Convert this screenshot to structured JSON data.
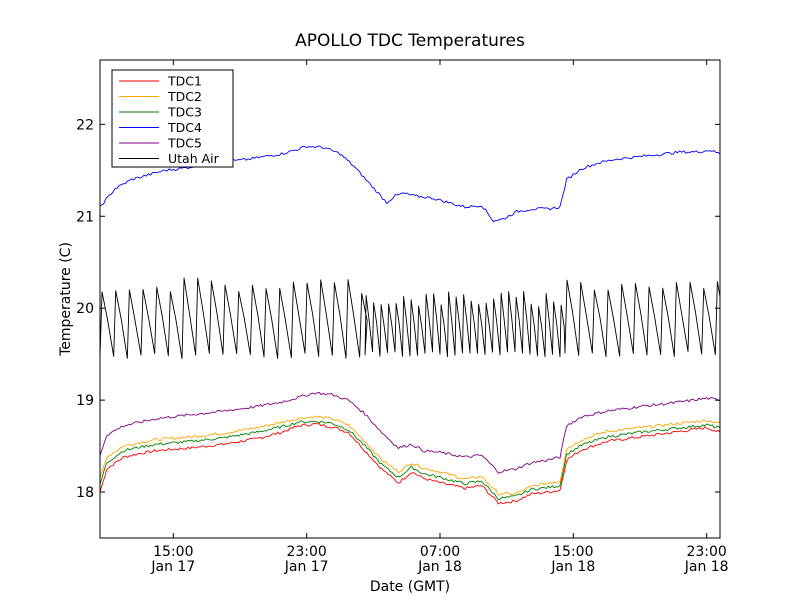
{
  "chart_data": {
    "type": "line",
    "title": "APOLLO TDC Temperatures",
    "xlabel": "Date (GMT)",
    "ylabel": "Temperature (C)",
    "x_unit": "hours since Jan 17 00:00 GMT",
    "xlim": [
      10.6,
      47.8
    ],
    "ylim": [
      17.5,
      22.7
    ],
    "x_ticks": [
      {
        "value": 15,
        "time": "15:00",
        "date": "Jan 17"
      },
      {
        "value": 23,
        "time": "23:00",
        "date": "Jan 17"
      },
      {
        "value": 31,
        "time": "07:00",
        "date": "Jan 18"
      },
      {
        "value": 39,
        "time": "15:00",
        "date": "Jan 18"
      },
      {
        "value": 47,
        "time": "23:00",
        "date": "Jan 18"
      }
    ],
    "y_ticks": [
      {
        "value": 18,
        "label": "18"
      },
      {
        "value": 19,
        "label": "19"
      },
      {
        "value": 20,
        "label": "20"
      },
      {
        "value": 21,
        "label": "21"
      },
      {
        "value": 22,
        "label": "22"
      }
    ],
    "legend_position": "top-left",
    "series": [
      {
        "name": "TDC1",
        "color": "#ff0000",
        "x": [
          10.6,
          11.0,
          12.0,
          13.0,
          14.0,
          16.0,
          18.0,
          20.0,
          21.5,
          22.5,
          23.5,
          24.5,
          25.5,
          26.5,
          27.5,
          28.5,
          29.3,
          30.0,
          31.0,
          32.5,
          33.5,
          34.5,
          35.5,
          36.5,
          37.5,
          38.2,
          38.6,
          39.5,
          41.0,
          43.0,
          45.0,
          47.0,
          47.8
        ],
        "y": [
          18.0,
          18.25,
          18.38,
          18.42,
          18.45,
          18.48,
          18.52,
          18.58,
          18.65,
          18.72,
          18.74,
          18.71,
          18.65,
          18.45,
          18.25,
          18.1,
          18.22,
          18.15,
          18.1,
          18.04,
          18.07,
          17.88,
          17.9,
          17.98,
          18.0,
          18.02,
          18.35,
          18.46,
          18.55,
          18.6,
          18.65,
          18.7,
          18.65
        ]
      },
      {
        "name": "TDC2",
        "color": "#ffa500",
        "x": [
          10.6,
          11.0,
          12.0,
          13.0,
          14.0,
          16.0,
          18.0,
          20.0,
          21.5,
          22.5,
          23.5,
          24.5,
          25.5,
          26.5,
          27.5,
          28.5,
          29.3,
          30.0,
          31.0,
          32.5,
          33.5,
          34.5,
          35.5,
          36.5,
          37.5,
          38.2,
          38.6,
          39.5,
          41.0,
          43.0,
          45.0,
          47.0,
          47.8
        ],
        "y": [
          18.15,
          18.38,
          18.5,
          18.54,
          18.57,
          18.6,
          18.64,
          18.7,
          18.76,
          18.8,
          18.82,
          18.8,
          18.73,
          18.55,
          18.35,
          18.22,
          18.32,
          18.26,
          18.22,
          18.14,
          18.17,
          17.98,
          17.98,
          18.06,
          18.1,
          18.12,
          18.47,
          18.57,
          18.66,
          18.7,
          18.74,
          18.78,
          18.75
        ]
      },
      {
        "name": "TDC3",
        "color": "#008000",
        "x": [
          10.6,
          11.0,
          12.0,
          13.0,
          14.0,
          16.0,
          18.0,
          20.0,
          21.5,
          22.5,
          23.5,
          24.5,
          25.5,
          26.5,
          27.5,
          28.5,
          29.3,
          30.0,
          31.0,
          32.5,
          33.5,
          34.5,
          35.5,
          36.5,
          37.5,
          38.2,
          38.6,
          39.5,
          41.0,
          43.0,
          45.0,
          47.0,
          47.8
        ],
        "y": [
          18.08,
          18.32,
          18.45,
          18.49,
          18.52,
          18.55,
          18.59,
          18.65,
          18.71,
          18.76,
          18.77,
          18.75,
          18.68,
          18.5,
          18.3,
          18.16,
          18.27,
          18.2,
          18.16,
          18.09,
          18.12,
          17.93,
          17.95,
          18.03,
          18.05,
          18.07,
          18.41,
          18.51,
          18.6,
          18.65,
          18.69,
          18.73,
          18.7
        ]
      },
      {
        "name": "TDC4",
        "color": "#0000ff",
        "x": [
          10.6,
          11.5,
          12.5,
          13.5,
          14.5,
          15.5,
          16.5,
          17.5,
          18.5,
          19.5,
          20.5,
          21.5,
          22.3,
          23.0,
          24.0,
          25.0,
          25.8,
          26.8,
          27.8,
          28.3,
          28.8,
          29.5,
          30.5,
          31.5,
          32.5,
          33.5,
          34.2,
          34.8,
          35.6,
          36.5,
          37.5,
          38.2,
          38.6,
          39.5,
          40.5,
          41.5,
          42.5,
          43.5,
          44.5,
          45.5,
          46.5,
          47.2,
          47.8
        ],
        "y": [
          21.1,
          21.3,
          21.4,
          21.45,
          21.5,
          21.52,
          21.55,
          21.58,
          21.6,
          21.62,
          21.65,
          21.68,
          21.72,
          21.76,
          21.75,
          21.68,
          21.55,
          21.35,
          21.15,
          21.22,
          21.25,
          21.22,
          21.2,
          21.15,
          21.1,
          21.12,
          20.95,
          20.97,
          21.05,
          21.08,
          21.08,
          21.1,
          21.4,
          21.52,
          21.58,
          21.62,
          21.64,
          21.66,
          21.68,
          21.7,
          21.7,
          21.72,
          21.68
        ]
      },
      {
        "name": "TDC5",
        "color": "#800080",
        "x": [
          10.6,
          11.0,
          12.0,
          13.0,
          14.0,
          16.0,
          18.0,
          20.0,
          21.5,
          22.5,
          23.5,
          24.5,
          25.5,
          26.5,
          27.5,
          28.5,
          29.3,
          30.0,
          31.0,
          32.5,
          33.5,
          34.5,
          35.5,
          36.5,
          37.5,
          38.2,
          38.6,
          39.5,
          41.0,
          43.0,
          45.0,
          47.0,
          47.8
        ],
        "y": [
          18.4,
          18.62,
          18.72,
          18.76,
          18.8,
          18.84,
          18.88,
          18.93,
          18.98,
          19.03,
          19.08,
          19.06,
          19.0,
          18.85,
          18.65,
          18.48,
          18.52,
          18.45,
          18.43,
          18.38,
          18.4,
          18.22,
          18.25,
          18.32,
          18.35,
          18.38,
          18.72,
          18.82,
          18.88,
          18.93,
          18.97,
          19.02,
          19.0
        ]
      },
      {
        "name": "Utah Air",
        "color": "#000000",
        "pattern": "sawtooth",
        "segments": [
          {
            "from": 10.6,
            "to": 26.5,
            "period": 0.82,
            "low": 19.48,
            "high": 20.25
          },
          {
            "from": 26.5,
            "to": 38.5,
            "period": 0.45,
            "low": 19.5,
            "high": 20.1
          },
          {
            "from": 38.5,
            "to": 47.8,
            "period": 0.82,
            "low": 19.5,
            "high": 20.25
          }
        ]
      }
    ]
  }
}
